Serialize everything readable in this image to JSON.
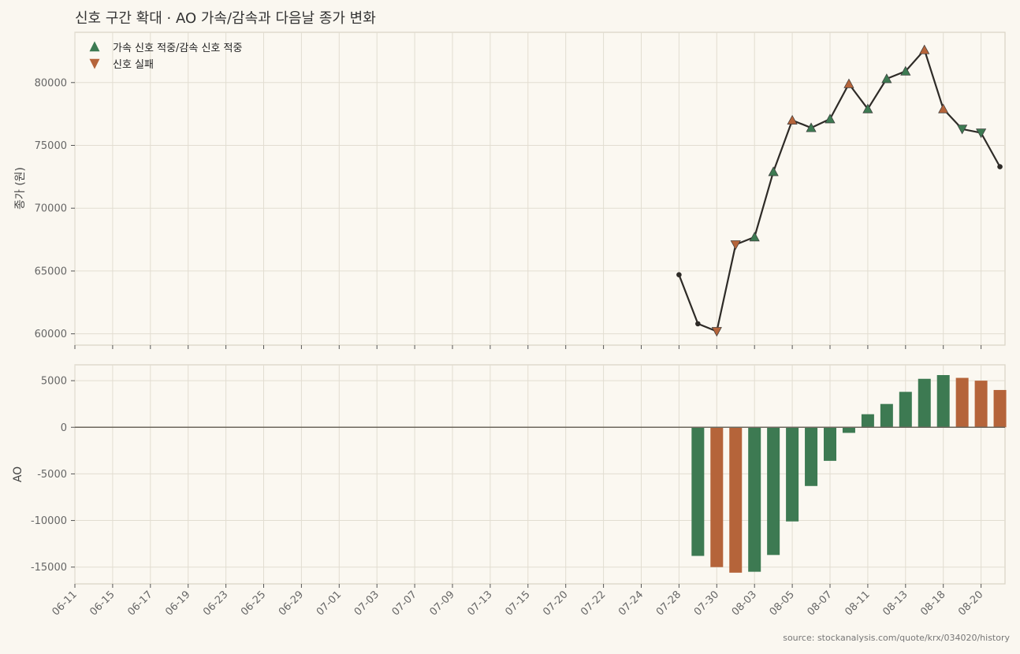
{
  "chart_data": {
    "type": "line+bar",
    "title": "신호 구간 확대 · AO 가속/감속과 다음날 종가 변화",
    "source": "source: stockanalysis.com/quote/krx/034020/history",
    "x_tick_labels": [
      "06-11",
      "06-15",
      "06-17",
      "06-19",
      "06-23",
      "06-25",
      "06-29",
      "07-01",
      "07-03",
      "07-07",
      "07-09",
      "07-13",
      "07-15",
      "07-20",
      "07-22",
      "07-24",
      "07-28",
      "07-30",
      "08-03",
      "08-05",
      "08-07",
      "08-11",
      "08-13",
      "08-18",
      "08-20"
    ],
    "legend": [
      {
        "label": "가속 신호 적중/감속 신호 적중",
        "marker": "triangle-up",
        "color": "#3d7a52"
      },
      {
        "label": "신호 실패",
        "marker": "triangle-down",
        "color": "#b5643a"
      }
    ],
    "colors": {
      "hit": "#3d7a52",
      "fail": "#b5643a",
      "line": "#2e2b27"
    },
    "price_panel": {
      "ylabel": "종가 (원)",
      "ylim": [
        59100,
        84000
      ],
      "yticks": [
        60000,
        65000,
        70000,
        75000,
        80000
      ],
      "points": [
        {
          "x": 16.0,
          "y": 64700,
          "marker": "dot"
        },
        {
          "x": 16.5,
          "y": 60800,
          "marker": "dot"
        },
        {
          "x": 17.0,
          "y": 60200,
          "marker": "down",
          "status": "fail"
        },
        {
          "x": 17.5,
          "y": 67100,
          "marker": "down",
          "status": "fail"
        },
        {
          "x": 18.0,
          "y": 67700,
          "marker": "up",
          "status": "hit"
        },
        {
          "x": 18.5,
          "y": 72900,
          "marker": "up",
          "status": "hit"
        },
        {
          "x": 19.0,
          "y": 77000,
          "marker": "up",
          "status": "fail"
        },
        {
          "x": 19.5,
          "y": 76400,
          "marker": "up",
          "status": "hit"
        },
        {
          "x": 20.0,
          "y": 77100,
          "marker": "up",
          "status": "hit"
        },
        {
          "x": 20.5,
          "y": 79900,
          "marker": "up",
          "status": "fail"
        },
        {
          "x": 21.0,
          "y": 77900,
          "marker": "up",
          "status": "hit"
        },
        {
          "x": 21.5,
          "y": 80300,
          "marker": "up",
          "status": "hit"
        },
        {
          "x": 22.0,
          "y": 80900,
          "marker": "up",
          "status": "hit"
        },
        {
          "x": 22.5,
          "y": 82600,
          "marker": "up",
          "status": "fail"
        },
        {
          "x": 23.0,
          "y": 77900,
          "marker": "up",
          "status": "fail"
        },
        {
          "x": 23.5,
          "y": 76300,
          "marker": "down",
          "status": "hit"
        },
        {
          "x": 24.0,
          "y": 76000,
          "marker": "down",
          "status": "hit"
        },
        {
          "x": 24.5,
          "y": 73300,
          "marker": "dot"
        }
      ]
    },
    "ao_panel": {
      "ylabel": "AO",
      "ylim": [
        -16800,
        6700
      ],
      "yticks": [
        -15000,
        -10000,
        -5000,
        0,
        5000
      ],
      "bars": [
        {
          "x": 16.5,
          "value": -13800,
          "status": "hit"
        },
        {
          "x": 17.0,
          "value": -15000,
          "status": "fail"
        },
        {
          "x": 17.5,
          "value": -15600,
          "status": "fail"
        },
        {
          "x": 18.0,
          "value": -15500,
          "status": "hit"
        },
        {
          "x": 18.5,
          "value": -13700,
          "status": "hit"
        },
        {
          "x": 19.0,
          "value": -10100,
          "status": "hit"
        },
        {
          "x": 19.5,
          "value": -6300,
          "status": "hit"
        },
        {
          "x": 20.0,
          "value": -3600,
          "status": "hit"
        },
        {
          "x": 20.5,
          "value": -600,
          "status": "hit"
        },
        {
          "x": 21.0,
          "value": 1400,
          "status": "hit"
        },
        {
          "x": 21.5,
          "value": 2500,
          "status": "hit"
        },
        {
          "x": 22.0,
          "value": 3800,
          "status": "hit"
        },
        {
          "x": 22.5,
          "value": 5200,
          "status": "hit"
        },
        {
          "x": 23.0,
          "value": 5600,
          "status": "hit"
        },
        {
          "x": 23.5,
          "value": 5300,
          "status": "fail"
        },
        {
          "x": 24.0,
          "value": 5000,
          "status": "fail"
        },
        {
          "x": 24.5,
          "value": 4000,
          "status": "fail"
        }
      ]
    }
  }
}
